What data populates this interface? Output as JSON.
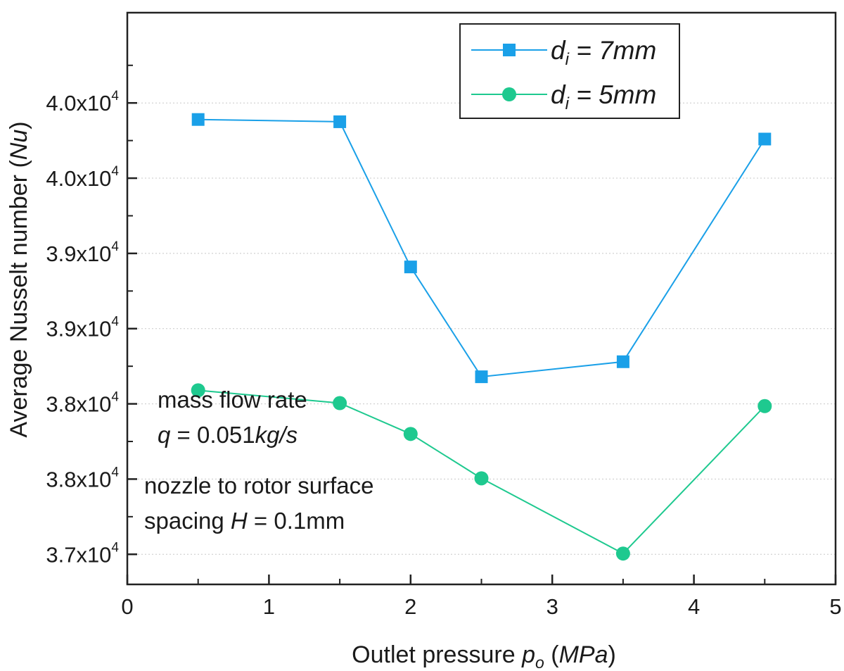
{
  "chart_data": {
    "type": "line",
    "xlabel": "Outlet pressure p_o (MPa)",
    "ylabel": "Average Nusselt number (Nu)",
    "xlim": [
      0,
      5
    ],
    "ylim": [
      36800,
      40600
    ],
    "x_ticks": [
      "0",
      "1",
      "2",
      "3",
      "4",
      "5"
    ],
    "y_ticks": [
      {
        "value": 37000,
        "mantissa": "3.7",
        "base": "x10",
        "exp": "4"
      },
      {
        "value": 37500,
        "mantissa": "3.8",
        "base": "x10",
        "exp": "4"
      },
      {
        "value": 38000,
        "mantissa": "3.8",
        "base": "x10",
        "exp": "4"
      },
      {
        "value": 38500,
        "mantissa": "3.9",
        "base": "x10",
        "exp": "4"
      },
      {
        "value": 39000,
        "mantissa": "3.9",
        "base": "x10",
        "exp": "4"
      },
      {
        "value": 39500,
        "mantissa": "4.0",
        "base": "x10",
        "exp": "4"
      },
      {
        "value": 40000,
        "mantissa": "4.0",
        "base": "x10",
        "exp": "4"
      }
    ],
    "grid": "horizontal dotted",
    "legend_position": "top-right",
    "series": [
      {
        "name": "d_i = 7mm",
        "marker": "square",
        "color": "#1aa0e8",
        "x": [
          0.5,
          1.5,
          2.0,
          2.5,
          3.5,
          4.5
        ],
        "y": [
          39890,
          39875,
          38910,
          38180,
          38280,
          39760
        ]
      },
      {
        "name": "d_i = 5mm",
        "marker": "circle",
        "color": "#1ec98f",
        "x": [
          0.5,
          1.5,
          2.0,
          2.5,
          3.5,
          4.5
        ],
        "y": [
          38090,
          38005,
          37800,
          37505,
          37005,
          37985
        ]
      }
    ]
  },
  "axes": {
    "xlabel_main": "Outlet pressure ",
    "xlabel_var": "p",
    "xlabel_sub": "o",
    "xlabel_unit_open": " (",
    "xlabel_unit": "MPa",
    "xlabel_unit_close": ")",
    "ylabel_main": "Average Nusselt number (",
    "ylabel_var": "Nu",
    "ylabel_close": ")"
  },
  "legend": {
    "s1_var": "d",
    "s1_sub": "i",
    "s1_rest": " = 7mm",
    "s2_var": "d",
    "s2_sub": "i",
    "s2_rest": " = 5mm"
  },
  "annotations": {
    "line1": "mass flow rate",
    "line2_var": "q",
    "line2_mid": " = 0.051",
    "line2_unit": "kg/s",
    "line3": "nozzle to rotor surface",
    "line4_pre": "spacing ",
    "line4_var": "H",
    "line4_post": " = 0.1mm"
  }
}
